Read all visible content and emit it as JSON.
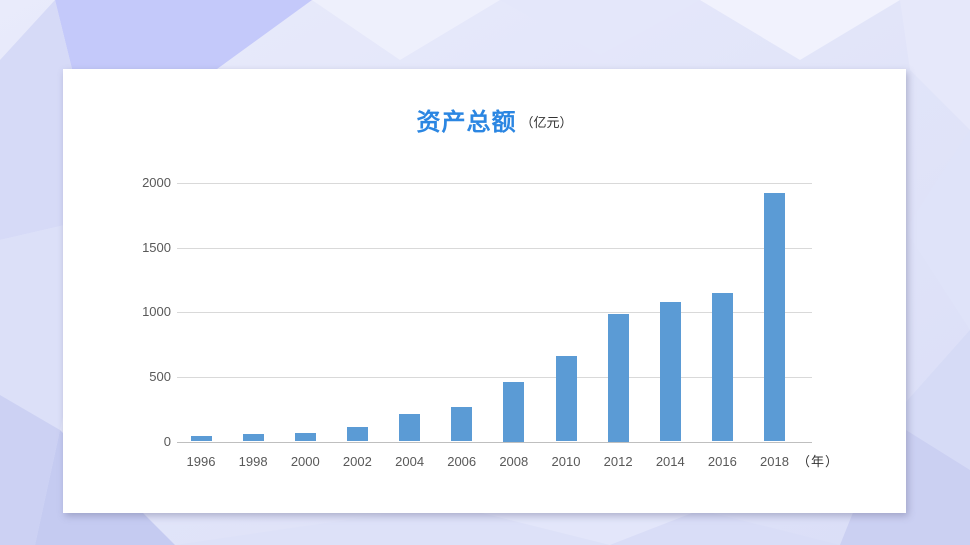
{
  "chart_data": {
    "type": "bar",
    "title": "资产总额",
    "unit_label": "（亿元）",
    "x_unit_label": "（年）",
    "categories": [
      "1996",
      "1998",
      "2000",
      "2002",
      "2004",
      "2006",
      "2008",
      "2010",
      "2012",
      "2014",
      "2016",
      "2018"
    ],
    "values": [
      40,
      55,
      65,
      110,
      210,
      270,
      460,
      660,
      990,
      1080,
      1150,
      1920
    ],
    "y_ticks": [
      0,
      500,
      1000,
      1500,
      2000
    ],
    "ylim": [
      0,
      2000
    ],
    "xlabel": "",
    "ylabel": "",
    "grid": true,
    "legend": "none",
    "colors": {
      "bar": "#5b9bd5",
      "title": "#2b86e2",
      "gridline": "#d9d9d9",
      "axis_line": "#bfbfbf",
      "tick_label": "#595959",
      "card_background": "#ffffff"
    }
  }
}
